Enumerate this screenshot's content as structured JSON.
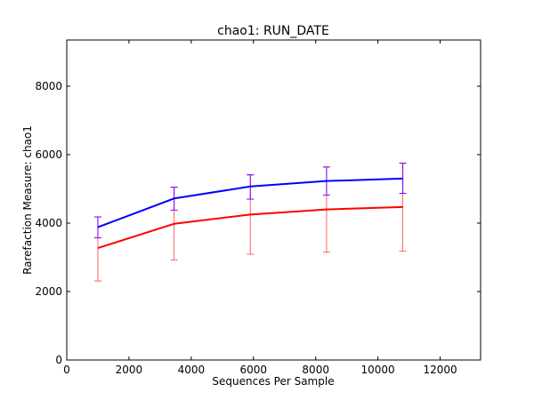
{
  "chart_data": {
    "type": "line",
    "title": "chao1: RUN_DATE",
    "xlabel": "Sequences Per Sample",
    "ylabel": "Rarefaction Measure: chao1",
    "xlim": [
      0,
      13300
    ],
    "ylim": [
      0,
      9350
    ],
    "xticks": [
      0,
      2000,
      4000,
      6000,
      8000,
      10000,
      12000
    ],
    "yticks": [
      0,
      2000,
      4000,
      6000,
      8000
    ],
    "grid": false,
    "legend": "none",
    "x": [
      1000,
      3450,
      5900,
      8350,
      10800
    ],
    "series": [
      {
        "color": "#0000ff",
        "errorbar_color": "#7f00ff",
        "values": [
          3880,
          4720,
          5070,
          5230,
          5300
        ],
        "err_low": [
          3570,
          4380,
          4700,
          4820,
          4870
        ],
        "err_high": [
          4180,
          5050,
          5410,
          5640,
          5750
        ]
      },
      {
        "color": "#ff0000",
        "errorbar_color": "#ff6060",
        "values": [
          3270,
          3980,
          4250,
          4400,
          4470
        ],
        "err_low": [
          2310,
          2920,
          3090,
          3150,
          3180
        ],
        "err_high": [
          4180,
          5050,
          5410,
          5640,
          5750
        ]
      }
    ]
  }
}
